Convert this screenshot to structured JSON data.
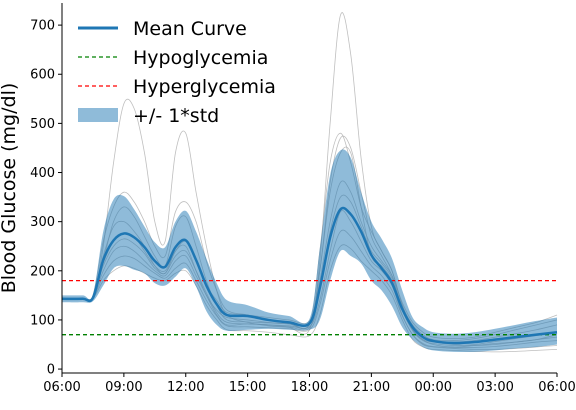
{
  "chart_data": {
    "type": "line",
    "title": "",
    "xlabel": "",
    "ylabel": "Blood Glucose (mg/dl)",
    "x_tick_labels": [
      "06:00",
      "09:00",
      "12:00",
      "15:00",
      "18:00",
      "21:00",
      "00:00",
      "03:00",
      "06:00"
    ],
    "x_ticks_hours": [
      0,
      3,
      6,
      9,
      12,
      15,
      18,
      21,
      24
    ],
    "xlim_hours": [
      0,
      24
    ],
    "y_ticks": [
      0,
      100,
      200,
      300,
      400,
      500,
      600,
      700
    ],
    "ylim": [
      -8,
      745
    ],
    "grid": false,
    "legend_position": "upper-left",
    "legend": [
      {
        "key": "mean",
        "label": "Mean Curve"
      },
      {
        "key": "hypo",
        "label": "Hypoglycemia"
      },
      {
        "key": "hyper",
        "label": "Hyperglycemia"
      },
      {
        "key": "std",
        "label": "+/- 1*std"
      }
    ],
    "thresholds": {
      "hypoglycemia": 70,
      "hyperglycemia": 180
    },
    "colors": {
      "mean": "#1f77b4",
      "band": "#1f77b4",
      "hypo": "#008000",
      "hyper": "#ff0000",
      "individual": "#aaaaaa"
    },
    "x_hours": [
      0,
      1,
      1.5,
      2,
      2.5,
      3,
      3.5,
      4,
      4.5,
      5,
      5.5,
      6,
      6.5,
      7,
      7.5,
      8,
      9,
      10,
      11,
      12,
      12.5,
      13,
      13.5,
      14,
      14.5,
      15,
      15.5,
      16,
      16.5,
      17,
      17.5,
      18,
      19,
      20,
      21,
      22,
      23,
      24
    ],
    "mean_curve": [
      143,
      143,
      145,
      222,
      262,
      276,
      268,
      248,
      220,
      208,
      248,
      262,
      222,
      170,
      132,
      110,
      108,
      100,
      95,
      93,
      165,
      268,
      325,
      315,
      280,
      232,
      205,
      175,
      122,
      85,
      65,
      57,
      53,
      55,
      60,
      65,
      70,
      75
    ],
    "std_upper": [
      150,
      150,
      152,
      280,
      345,
      352,
      325,
      290,
      258,
      248,
      300,
      322,
      280,
      225,
      175,
      140,
      130,
      115,
      108,
      102,
      245,
      395,
      445,
      430,
      360,
      300,
      265,
      225,
      160,
      105,
      85,
      75,
      72,
      75,
      82,
      90,
      98,
      105
    ],
    "std_lower": [
      136,
      136,
      138,
      170,
      205,
      210,
      202,
      195,
      175,
      170,
      188,
      205,
      168,
      118,
      90,
      78,
      80,
      82,
      80,
      80,
      100,
      180,
      240,
      230,
      215,
      180,
      160,
      128,
      85,
      60,
      45,
      38,
      35,
      35,
      38,
      42,
      45,
      50
    ],
    "individual_curves": [
      [
        143,
        143,
        150,
        260,
        330,
        360,
        340,
        300,
        250,
        230,
        320,
        340,
        300,
        220,
        160,
        120,
        110,
        100,
        95,
        92,
        240,
        420,
        480,
        420,
        330,
        280,
        240,
        200,
        130,
        90,
        70,
        60,
        58,
        62,
        70,
        80,
        90,
        100
      ],
      [
        143,
        143,
        148,
        230,
        290,
        300,
        280,
        250,
        210,
        195,
        240,
        250,
        200,
        150,
        120,
        105,
        100,
        95,
        92,
        90,
        200,
        360,
        440,
        440,
        330,
        230,
        210,
        180,
        120,
        80,
        60,
        50,
        45,
        48,
        52,
        55,
        60,
        65
      ],
      [
        143,
        143,
        145,
        250,
        420,
        540,
        530,
        440,
        300,
        260,
        440,
        480,
        360,
        250,
        160,
        110,
        95,
        88,
        85,
        80,
        220,
        500,
        720,
        640,
        430,
        290,
        240,
        200,
        130,
        80,
        60,
        55,
        50,
        48,
        50,
        55,
        60,
        70
      ],
      [
        143,
        143,
        146,
        200,
        240,
        250,
        240,
        220,
        200,
        190,
        220,
        230,
        190,
        150,
        110,
        90,
        92,
        90,
        88,
        86,
        140,
        240,
        320,
        300,
        260,
        220,
        200,
        170,
        110,
        70,
        50,
        45,
        42,
        40,
        40,
        42,
        45,
        48
      ],
      [
        143,
        143,
        146,
        215,
        260,
        275,
        270,
        240,
        210,
        200,
        240,
        260,
        220,
        170,
        140,
        115,
        110,
        105,
        100,
        98,
        180,
        300,
        380,
        360,
        300,
        250,
        220,
        190,
        135,
        95,
        75,
        65,
        62,
        65,
        75,
        85,
        95,
        110
      ],
      [
        143,
        143,
        145,
        220,
        300,
        330,
        310,
        270,
        230,
        210,
        290,
        310,
        250,
        180,
        130,
        100,
        96,
        94,
        92,
        90,
        200,
        380,
        470,
        450,
        360,
        270,
        230,
        190,
        125,
        85,
        65,
        58,
        55,
        58,
        65,
        72,
        80,
        90
      ],
      [
        143,
        143,
        144,
        180,
        200,
        210,
        205,
        195,
        185,
        180,
        195,
        200,
        170,
        130,
        100,
        80,
        78,
        75,
        70,
        68,
        110,
        200,
        250,
        245,
        220,
        200,
        180,
        150,
        100,
        60,
        45,
        40,
        38,
        36,
        35,
        36,
        38,
        40
      ],
      [
        143,
        143,
        146,
        210,
        250,
        265,
        255,
        235,
        205,
        195,
        230,
        240,
        200,
        155,
        115,
        95,
        92,
        90,
        86,
        84,
        160,
        280,
        350,
        340,
        290,
        240,
        215,
        185,
        120,
        78,
        58,
        52,
        48,
        50,
        56,
        62,
        68,
        75
      ],
      [
        143,
        143,
        145,
        190,
        220,
        230,
        225,
        210,
        195,
        185,
        205,
        215,
        180,
        140,
        108,
        88,
        86,
        84,
        82,
        80,
        130,
        220,
        280,
        270,
        240,
        210,
        190,
        160,
        108,
        70,
        52,
        46,
        44,
        44,
        46,
        50,
        55,
        58
      ]
    ]
  }
}
